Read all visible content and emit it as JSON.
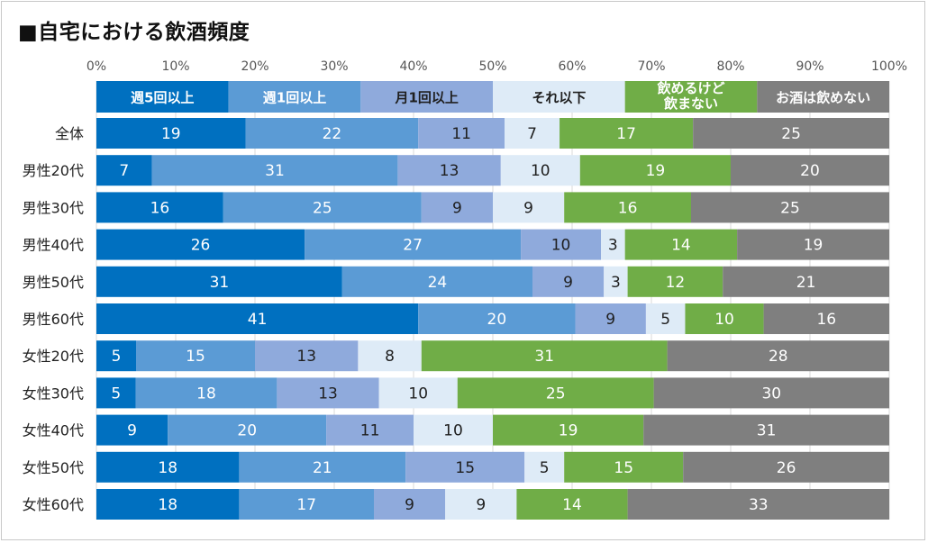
{
  "chart_data": {
    "type": "bar",
    "orientation": "horizontal-stacked-100",
    "title": "■自宅における飲酒頻度",
    "x_ticks": [
      "0%",
      "10%",
      "20%",
      "30%",
      "40%",
      "50%",
      "60%",
      "70%",
      "80%",
      "90%",
      "100%"
    ],
    "xlim": [
      0,
      100
    ],
    "legend_placement": "top",
    "grid": true,
    "categories": [
      "全体",
      "男性20代",
      "男性30代",
      "男性40代",
      "男性50代",
      "男性60代",
      "女性20代",
      "女性30代",
      "女性40代",
      "女性50代",
      "女性60代"
    ],
    "series": [
      {
        "name": "週5回以上",
        "color": "#0070C0",
        "label_color": "#ffffff",
        "values": [
          19,
          7,
          16,
          26,
          31,
          41,
          5,
          5,
          9,
          18,
          18
        ]
      },
      {
        "name": "週1回以上",
        "color": "#5B9BD5",
        "label_color": "#ffffff",
        "values": [
          22,
          31,
          25,
          27,
          24,
          20,
          15,
          18,
          20,
          21,
          17
        ]
      },
      {
        "name": "月1回以上",
        "color": "#8FAADC",
        "label_color": "#1f1f1f",
        "values": [
          11,
          13,
          9,
          10,
          9,
          9,
          13,
          13,
          11,
          15,
          9
        ]
      },
      {
        "name": "それ以下",
        "color": "#DEEBF7",
        "label_color": "#1f1f1f",
        "values": [
          7,
          10,
          9,
          3,
          3,
          5,
          8,
          10,
          10,
          5,
          9
        ]
      },
      {
        "name": "飲めるけど飲まない",
        "color": "#70AD47",
        "label_color": "#ffffff",
        "values": [
          17,
          19,
          16,
          14,
          12,
          10,
          31,
          25,
          19,
          15,
          14
        ]
      },
      {
        "name": "お酒は飲めない",
        "color": "#7F7F7F",
        "label_color": "#ffffff",
        "values": [
          25,
          20,
          25,
          19,
          21,
          16,
          28,
          30,
          31,
          26,
          33
        ]
      }
    ]
  }
}
